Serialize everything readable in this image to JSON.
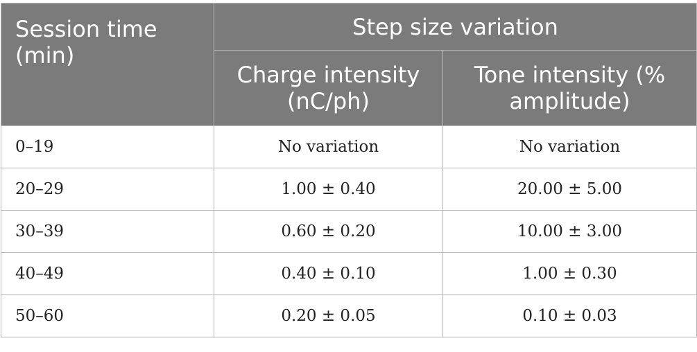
{
  "header": {
    "session_line1": "Session time",
    "session_line2": "(min)",
    "group": "Step size variation",
    "charge_line1": "Charge intensity",
    "charge_line2": "(nC/ph)",
    "tone_line1": "Tone intensity (%",
    "tone_line2": "amplitude)"
  },
  "rows": [
    {
      "time": "0–19",
      "charge": "No variation",
      "tone": "No variation"
    },
    {
      "time": "20–29",
      "charge": "1.00 ± 0.40",
      "tone": "20.00 ± 5.00"
    },
    {
      "time": "30–39",
      "charge": "0.60 ± 0.20",
      "tone": "10.00 ± 3.00"
    },
    {
      "time": "40–49",
      "charge": "0.40 ± 0.10",
      "tone": "1.00 ± 0.30"
    },
    {
      "time": "50–60",
      "charge": "0.20 ± 0.05",
      "tone": "0.10 ± 0.03"
    }
  ]
}
